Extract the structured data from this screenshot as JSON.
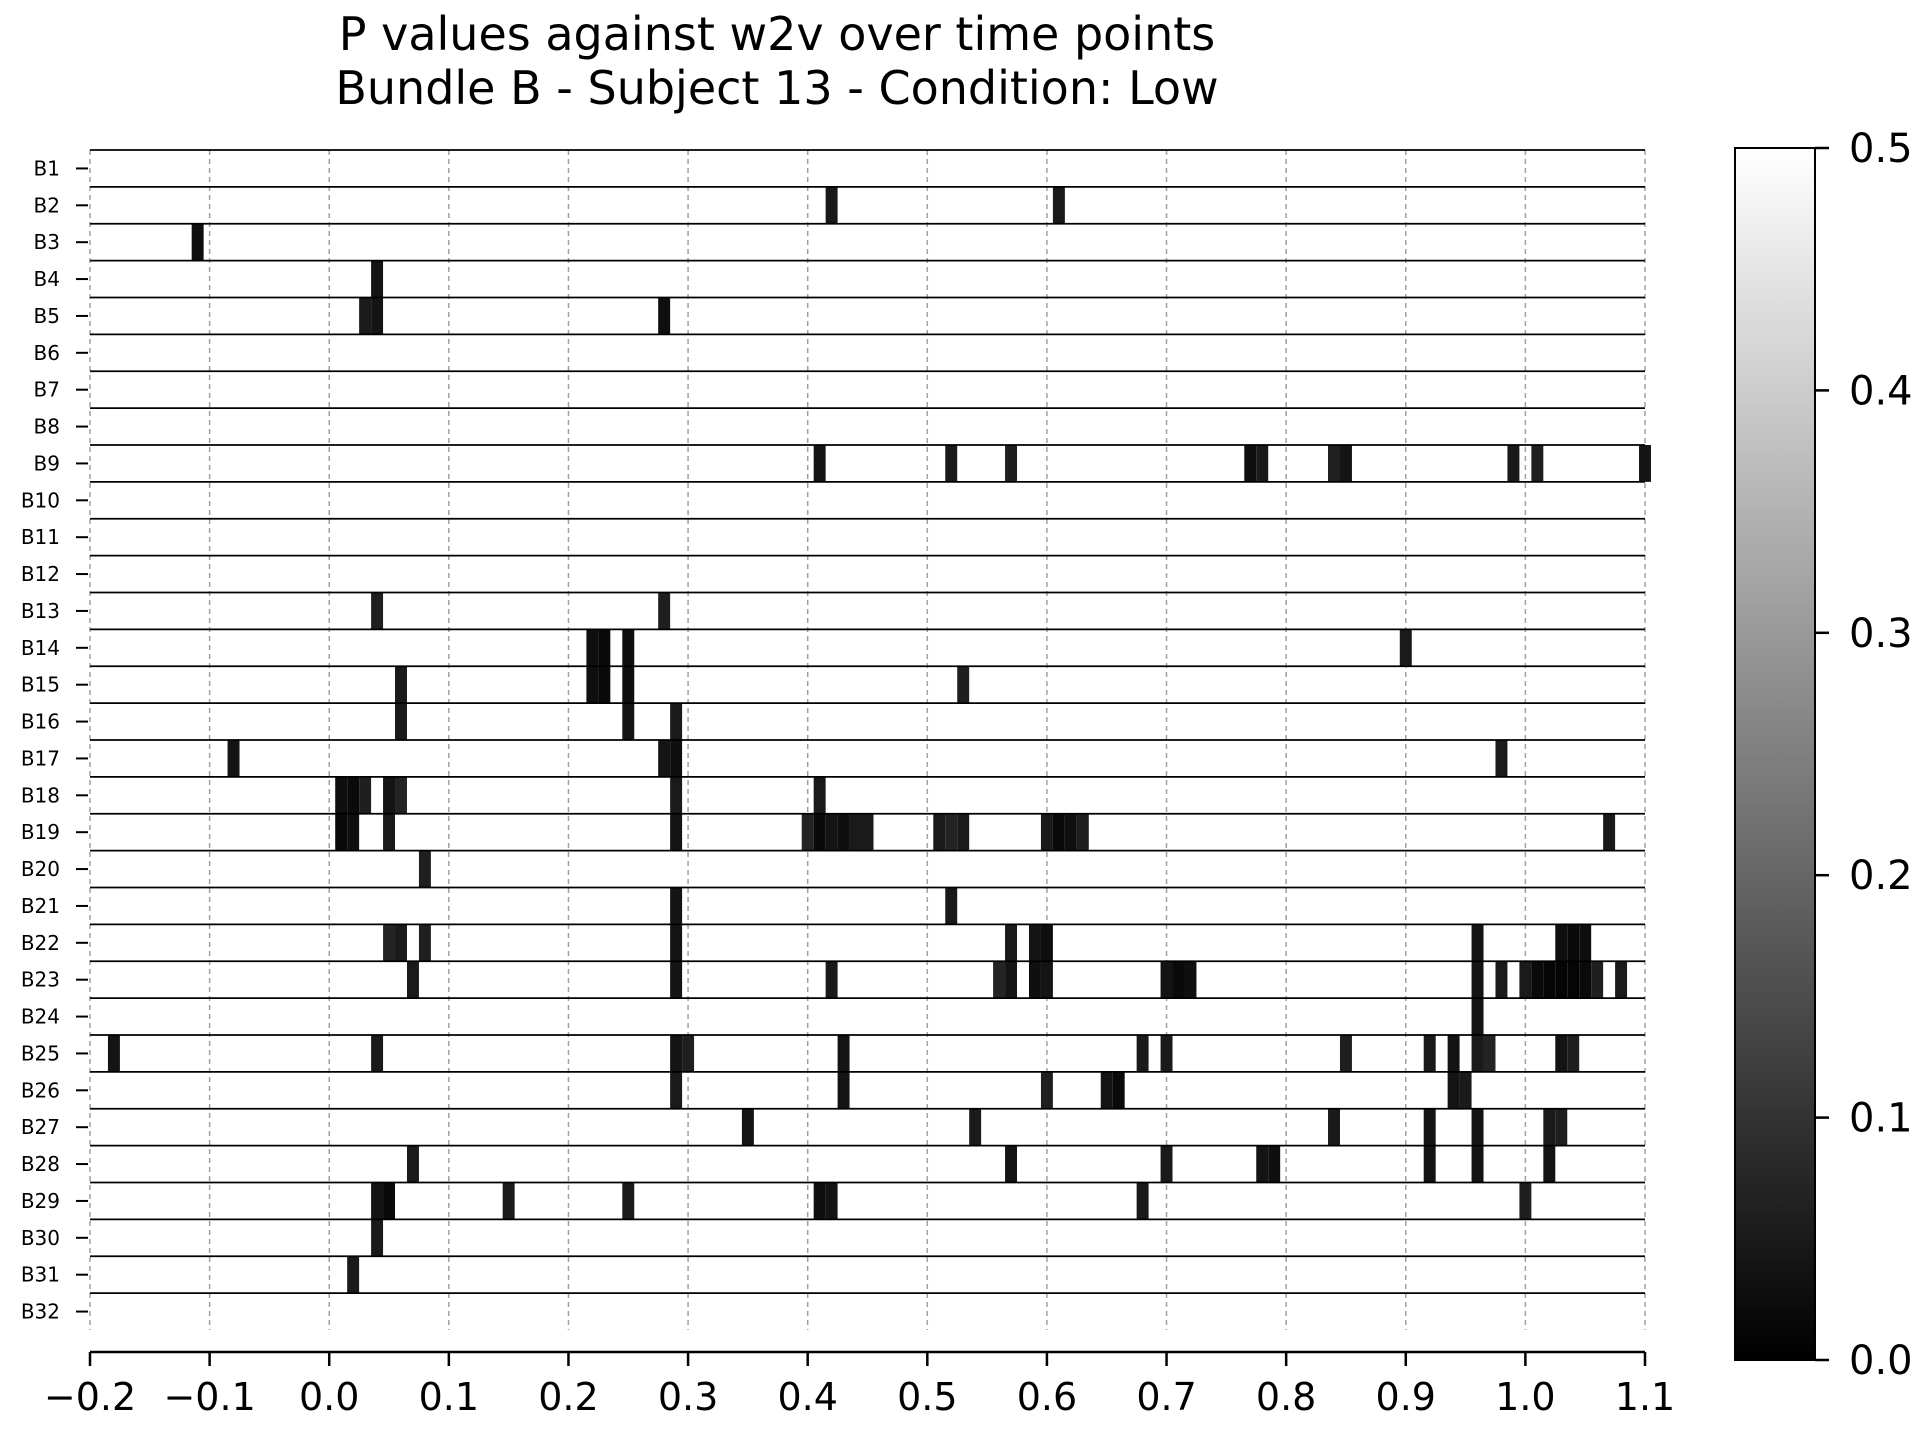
{
  "chart_data": {
    "type": "heatmap",
    "title": [
      "P values against w2v over time points",
      "Bundle B - Subject 13 - Condition: Low"
    ],
    "xlabel": "",
    "ylabel": "",
    "xlim": [
      -0.2,
      1.1
    ],
    "x_ticks": [
      "−0.2",
      "−0.1",
      "0.0",
      "0.1",
      "0.2",
      "0.3",
      "0.4",
      "0.5",
      "0.6",
      "0.7",
      "0.8",
      "0.9",
      "1.0",
      "1.1"
    ],
    "x_tick_values": [
      -0.2,
      -0.1,
      0.0,
      0.1,
      0.2,
      0.3,
      0.4,
      0.5,
      0.6,
      0.7,
      0.8,
      0.9,
      1.0,
      1.1
    ],
    "vertical_grid": "dashed gray at each x tick",
    "rows": [
      "B1",
      "B2",
      "B3",
      "B4",
      "B5",
      "B6",
      "B7",
      "B8",
      "B9",
      "B10",
      "B11",
      "B12",
      "B13",
      "B14",
      "B15",
      "B16",
      "B17",
      "B18",
      "B19",
      "B20",
      "B21",
      "B22",
      "B23",
      "B24",
      "B25",
      "B26",
      "B27",
      "B28",
      "B29",
      "B30",
      "B31",
      "B32"
    ],
    "colormap": "gray (0 = black, 0.5 = white)",
    "colorbar": {
      "min": 0.0,
      "max": 0.5,
      "ticks": [
        "0.0",
        "0.1",
        "0.2",
        "0.3",
        "0.4",
        "0.5"
      ],
      "tick_values": [
        0.0,
        0.1,
        0.2,
        0.3,
        0.4,
        0.5
      ]
    },
    "cell_width": 0.01,
    "significant_cells": [
      {
        "row": "B2",
        "cells": [
          [
            0.42,
            0.05
          ],
          [
            0.61,
            0.05
          ]
        ]
      },
      {
        "row": "B3",
        "cells": [
          [
            -0.11,
            0.03
          ]
        ]
      },
      {
        "row": "B4",
        "cells": [
          [
            0.04,
            0.04
          ]
        ]
      },
      {
        "row": "B5",
        "cells": [
          [
            0.03,
            0.05
          ],
          [
            0.04,
            0.04
          ],
          [
            0.28,
            0.03
          ]
        ]
      },
      {
        "row": "B9",
        "cells": [
          [
            0.41,
            0.04
          ],
          [
            0.52,
            0.05
          ],
          [
            0.57,
            0.06
          ],
          [
            0.77,
            0.03
          ],
          [
            0.78,
            0.05
          ],
          [
            0.84,
            0.06
          ],
          [
            0.85,
            0.04
          ],
          [
            0.99,
            0.05
          ],
          [
            1.01,
            0.06
          ],
          [
            1.1,
            0.04
          ]
        ]
      },
      {
        "row": "B13",
        "cells": [
          [
            0.04,
            0.06
          ],
          [
            0.28,
            0.06
          ]
        ]
      },
      {
        "row": "B14",
        "cells": [
          [
            0.22,
            0.03
          ],
          [
            0.23,
            0.02
          ],
          [
            0.25,
            0.03
          ],
          [
            0.9,
            0.05
          ]
        ]
      },
      {
        "row": "B15",
        "cells": [
          [
            0.06,
            0.05
          ],
          [
            0.22,
            0.03
          ],
          [
            0.23,
            0.02
          ],
          [
            0.25,
            0.03
          ],
          [
            0.53,
            0.06
          ]
        ]
      },
      {
        "row": "B16",
        "cells": [
          [
            0.06,
            0.05
          ],
          [
            0.25,
            0.04
          ],
          [
            0.29,
            0.05
          ]
        ]
      },
      {
        "row": "B17",
        "cells": [
          [
            -0.08,
            0.04
          ],
          [
            0.28,
            0.04
          ],
          [
            0.29,
            0.03
          ],
          [
            0.98,
            0.05
          ]
        ]
      },
      {
        "row": "B18",
        "cells": [
          [
            0.01,
            0.03
          ],
          [
            0.02,
            0.02
          ],
          [
            0.03,
            0.06
          ],
          [
            0.05,
            0.04
          ],
          [
            0.06,
            0.07
          ],
          [
            0.29,
            0.05
          ],
          [
            0.41,
            0.05
          ]
        ]
      },
      {
        "row": "B19",
        "cells": [
          [
            0.01,
            0.02
          ],
          [
            0.02,
            0.03
          ],
          [
            0.05,
            0.05
          ],
          [
            0.29,
            0.04
          ],
          [
            0.4,
            0.07
          ],
          [
            0.41,
            0.02
          ],
          [
            0.42,
            0.04
          ],
          [
            0.43,
            0.03
          ],
          [
            0.44,
            0.05
          ],
          [
            0.45,
            0.05
          ],
          [
            0.51,
            0.05
          ],
          [
            0.52,
            0.07
          ],
          [
            0.53,
            0.05
          ],
          [
            0.6,
            0.05
          ],
          [
            0.61,
            0.02
          ],
          [
            0.62,
            0.03
          ],
          [
            0.63,
            0.06
          ],
          [
            1.07,
            0.05
          ]
        ]
      },
      {
        "row": "B20",
        "cells": [
          [
            0.08,
            0.06
          ]
        ]
      },
      {
        "row": "B21",
        "cells": [
          [
            0.29,
            0.04
          ],
          [
            0.52,
            0.05
          ]
        ]
      },
      {
        "row": "B22",
        "cells": [
          [
            0.05,
            0.07
          ],
          [
            0.06,
            0.05
          ],
          [
            0.08,
            0.06
          ],
          [
            0.29,
            0.04
          ],
          [
            0.57,
            0.05
          ],
          [
            0.59,
            0.04
          ],
          [
            0.6,
            0.03
          ],
          [
            0.96,
            0.04
          ],
          [
            1.03,
            0.03
          ],
          [
            1.04,
            0.02
          ],
          [
            1.05,
            0.03
          ]
        ]
      },
      {
        "row": "B23",
        "cells": [
          [
            0.07,
            0.05
          ],
          [
            0.29,
            0.04
          ],
          [
            0.42,
            0.05
          ],
          [
            0.56,
            0.07
          ],
          [
            0.57,
            0.04
          ],
          [
            0.59,
            0.03
          ],
          [
            0.6,
            0.04
          ],
          [
            0.7,
            0.04
          ],
          [
            0.71,
            0.02
          ],
          [
            0.72,
            0.03
          ],
          [
            0.96,
            0.04
          ],
          [
            0.98,
            0.05
          ],
          [
            1.0,
            0.05
          ],
          [
            1.01,
            0.02
          ],
          [
            1.02,
            0.01
          ],
          [
            1.03,
            0.01
          ],
          [
            1.04,
            0.01
          ],
          [
            1.05,
            0.02
          ],
          [
            1.06,
            0.06
          ],
          [
            1.08,
            0.05
          ]
        ]
      },
      {
        "row": "B24",
        "cells": [
          [
            0.96,
            0.04
          ]
        ]
      },
      {
        "row": "B25",
        "cells": [
          [
            -0.18,
            0.04
          ],
          [
            0.04,
            0.05
          ],
          [
            0.29,
            0.04
          ],
          [
            0.3,
            0.06
          ],
          [
            0.43,
            0.04
          ],
          [
            0.68,
            0.05
          ],
          [
            0.7,
            0.05
          ],
          [
            0.85,
            0.06
          ],
          [
            0.92,
            0.05
          ],
          [
            0.94,
            0.04
          ],
          [
            0.96,
            0.05
          ],
          [
            0.97,
            0.07
          ],
          [
            1.03,
            0.04
          ],
          [
            1.04,
            0.06
          ]
        ]
      },
      {
        "row": "B26",
        "cells": [
          [
            0.29,
            0.05
          ],
          [
            0.43,
            0.04
          ],
          [
            0.6,
            0.06
          ],
          [
            0.65,
            0.04
          ],
          [
            0.66,
            0.02
          ],
          [
            0.94,
            0.04
          ],
          [
            0.95,
            0.05
          ]
        ]
      },
      {
        "row": "B27",
        "cells": [
          [
            0.35,
            0.04
          ],
          [
            0.54,
            0.05
          ],
          [
            0.84,
            0.05
          ],
          [
            0.92,
            0.04
          ],
          [
            0.96,
            0.04
          ],
          [
            1.02,
            0.05
          ],
          [
            1.03,
            0.06
          ]
        ]
      },
      {
        "row": "B28",
        "cells": [
          [
            0.07,
            0.05
          ],
          [
            0.57,
            0.04
          ],
          [
            0.7,
            0.05
          ],
          [
            0.78,
            0.04
          ],
          [
            0.79,
            0.03
          ],
          [
            0.92,
            0.04
          ],
          [
            0.96,
            0.04
          ],
          [
            1.02,
            0.04
          ]
        ]
      },
      {
        "row": "B29",
        "cells": [
          [
            0.04,
            0.04
          ],
          [
            0.05,
            0.02
          ],
          [
            0.15,
            0.05
          ],
          [
            0.25,
            0.05
          ],
          [
            0.41,
            0.03
          ],
          [
            0.42,
            0.04
          ],
          [
            0.68,
            0.05
          ],
          [
            1.0,
            0.06
          ]
        ]
      },
      {
        "row": "B30",
        "cells": [
          [
            0.04,
            0.05
          ]
        ]
      },
      {
        "row": "B31",
        "cells": [
          [
            0.02,
            0.05
          ]
        ]
      }
    ]
  }
}
